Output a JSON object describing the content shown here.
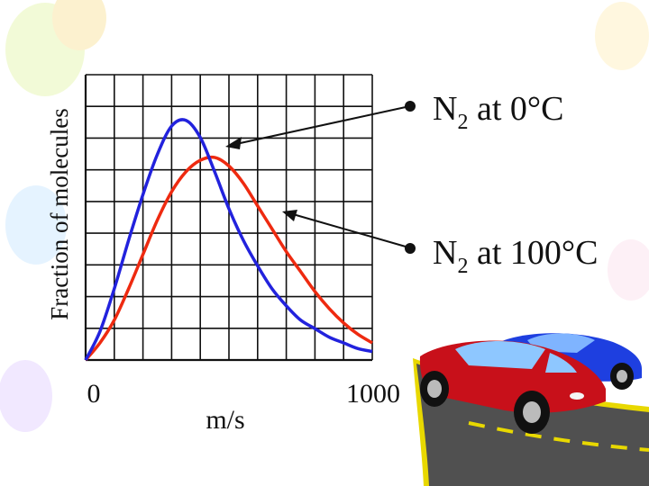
{
  "chart_data": {
    "type": "line",
    "xlabel": "m/s",
    "ylabel": "Fraction of molecules",
    "x_ticks": [
      "0",
      "1000"
    ],
    "xlim": [
      0,
      1000
    ],
    "ylim": [
      0,
      1
    ],
    "grid": true,
    "series": [
      {
        "name": "N2 at 0°C",
        "label_main": "N",
        "label_sub": "2",
        "label_rest": " at 0°C",
        "color": "#2222dd",
        "x": [
          0,
          50,
          100,
          150,
          200,
          250,
          300,
          350,
          400,
          450,
          500,
          550,
          600,
          650,
          700,
          750,
          800,
          850,
          900,
          950,
          1000
        ],
        "y": [
          0,
          0.1,
          0.25,
          0.42,
          0.58,
          0.72,
          0.82,
          0.84,
          0.78,
          0.66,
          0.53,
          0.42,
          0.33,
          0.25,
          0.19,
          0.14,
          0.11,
          0.08,
          0.06,
          0.04,
          0.03
        ]
      },
      {
        "name": "N2 at 100°C",
        "label_main": "N",
        "label_sub": "2",
        "label_rest": " at 100°C",
        "color": "#ee2a10",
        "x": [
          0,
          50,
          100,
          150,
          200,
          250,
          300,
          350,
          400,
          450,
          500,
          550,
          600,
          650,
          700,
          750,
          800,
          850,
          900,
          950,
          1000
        ],
        "y": [
          0,
          0.06,
          0.14,
          0.25,
          0.37,
          0.49,
          0.59,
          0.66,
          0.7,
          0.71,
          0.68,
          0.62,
          0.54,
          0.46,
          0.38,
          0.31,
          0.24,
          0.18,
          0.13,
          0.09,
          0.06
        ]
      }
    ]
  },
  "colors": {
    "grid": "#111111",
    "car_red": "#c8101a",
    "car_blue": "#1e3fe0",
    "road": "#505050",
    "road_edge": "#e8d800"
  }
}
